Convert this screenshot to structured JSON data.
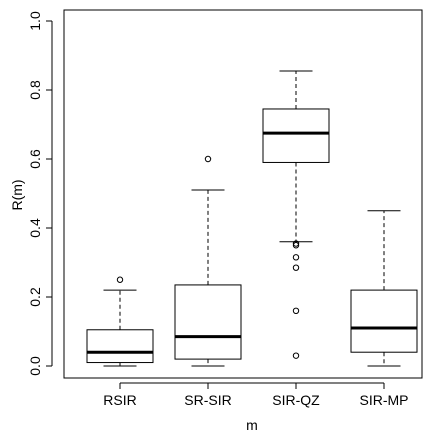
{
  "chart_data": {
    "type": "boxplot",
    "title": "",
    "xlabel": "m",
    "ylabel": "R(m)",
    "ylim": [
      0.0,
      1.0
    ],
    "yticks": [
      0.0,
      0.2,
      0.4,
      0.6,
      0.8,
      1.0
    ],
    "ytick_labels": [
      "0.0",
      "0.2",
      "0.4",
      "0.6",
      "0.8",
      "1.0"
    ],
    "categories": [
      "RSIR",
      "SR-SIR",
      "SIR-QZ",
      "SIR-MP"
    ],
    "boxes": [
      {
        "name": "RSIR",
        "whisker_low": 0.0,
        "q1": 0.01,
        "median": 0.04,
        "q3": 0.105,
        "whisker_high": 0.22,
        "outliers": [
          0.25
        ]
      },
      {
        "name": "SR-SIR",
        "whisker_low": 0.0,
        "q1": 0.02,
        "median": 0.085,
        "q3": 0.235,
        "whisker_high": 0.51,
        "outliers": [
          0.6
        ]
      },
      {
        "name": "SIR-QZ",
        "whisker_low": 0.36,
        "q1": 0.59,
        "median": 0.675,
        "q3": 0.745,
        "whisker_high": 0.855,
        "outliers": [
          0.355,
          0.35,
          0.315,
          0.285,
          0.16,
          0.03
        ]
      },
      {
        "name": "SIR-MP",
        "whisker_low": 0.0,
        "q1": 0.04,
        "median": 0.11,
        "q3": 0.22,
        "whisker_high": 0.45,
        "outliers": []
      }
    ],
    "grid": false,
    "legend": "none"
  }
}
